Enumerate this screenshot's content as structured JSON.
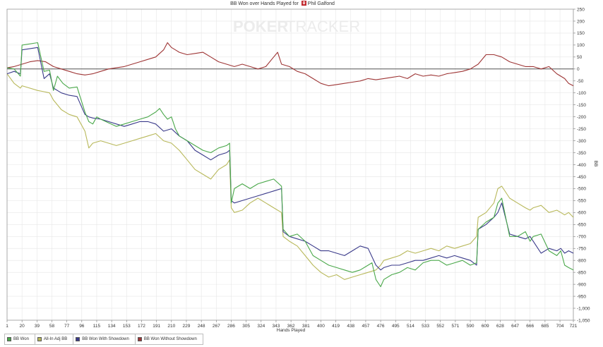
{
  "chart_data": {
    "type": "line",
    "title": "BB Won over Hands Played for",
    "player": "Phil Galfond",
    "watermark": {
      "part1": "POKER",
      "part2": "TRACKER"
    },
    "xlabel": "Hands Played",
    "ylabel": "BB",
    "xlim": [
      1,
      721
    ],
    "ylim": [
      -1050,
      250
    ],
    "x_ticks": [
      1,
      20,
      39,
      58,
      77,
      96,
      115,
      134,
      153,
      172,
      191,
      210,
      229,
      248,
      267,
      286,
      305,
      324,
      343,
      362,
      381,
      400,
      419,
      438,
      457,
      476,
      495,
      514,
      533,
      552,
      571,
      590,
      609,
      628,
      647,
      666,
      685,
      704,
      721
    ],
    "y_ticks": [
      {
        "value": 250,
        "label": "250"
      },
      {
        "value": 200,
        "label": "200"
      },
      {
        "value": 150,
        "label": "150"
      },
      {
        "value": 100,
        "label": "100"
      },
      {
        "value": 50,
        "label": "50"
      },
      {
        "value": 0,
        "label": "0"
      },
      {
        "value": -50,
        "label": "-50"
      },
      {
        "value": -100,
        "label": "-100"
      },
      {
        "value": -150,
        "label": "-150"
      },
      {
        "value": -200,
        "label": "-200"
      },
      {
        "value": -250,
        "label": "-250"
      },
      {
        "value": -300,
        "label": "-300"
      },
      {
        "value": -350,
        "label": "-350"
      },
      {
        "value": -400,
        "label": "-400"
      },
      {
        "value": -450,
        "label": "-450"
      },
      {
        "value": -500,
        "label": "-500"
      },
      {
        "value": -550,
        "label": "-550"
      },
      {
        "value": -600,
        "label": "-600"
      },
      {
        "value": -650,
        "label": "-650"
      },
      {
        "value": -700,
        "label": "-700"
      },
      {
        "value": -750,
        "label": "-750"
      },
      {
        "value": -800,
        "label": "-800"
      },
      {
        "value": -850,
        "label": "-850"
      },
      {
        "value": -900,
        "label": "-900"
      },
      {
        "value": -950,
        "label": "-950"
      },
      {
        "value": -1000,
        "label": "-1,000"
      },
      {
        "value": -1050,
        "label": "-1,050"
      }
    ],
    "grid": true,
    "legend_position": "bottom-left",
    "series": [
      {
        "name": "BB Won",
        "color": "#4aa84a",
        "x": [
          1,
          10,
          18,
          20,
          40,
          48,
          55,
          60,
          65,
          72,
          80,
          90,
          100,
          105,
          110,
          115,
          120,
          130,
          140,
          150,
          160,
          170,
          180,
          190,
          195,
          200,
          205,
          210,
          215,
          220,
          230,
          240,
          250,
          260,
          270,
          280,
          284,
          286,
          290,
          300,
          310,
          320,
          330,
          340,
          350,
          352,
          360,
          370,
          380,
          390,
          400,
          410,
          420,
          430,
          440,
          450,
          460,
          465,
          470,
          476,
          480,
          490,
          500,
          510,
          520,
          530,
          540,
          550,
          560,
          570,
          580,
          590,
          598,
          600,
          610,
          620,
          625,
          630,
          640,
          650,
          660,
          666,
          670,
          680,
          690,
          700,
          705,
          710,
          715,
          721
        ],
        "y": [
          5,
          0,
          -30,
          100,
          110,
          -10,
          -5,
          -90,
          -30,
          -60,
          -80,
          -75,
          -180,
          -220,
          -230,
          -200,
          -210,
          -225,
          -240,
          -230,
          -220,
          -210,
          -200,
          -180,
          -165,
          -190,
          -210,
          -200,
          -250,
          -280,
          -300,
          -320,
          -340,
          -350,
          -330,
          -320,
          -310,
          -560,
          -500,
          -480,
          -500,
          -480,
          -470,
          -460,
          -490,
          -670,
          -700,
          -690,
          -720,
          -780,
          -800,
          -820,
          -830,
          -840,
          -850,
          -840,
          -820,
          -810,
          -880,
          -910,
          -880,
          -860,
          -850,
          -830,
          -840,
          -810,
          -800,
          -800,
          -820,
          -810,
          -800,
          -820,
          -810,
          -670,
          -640,
          -620,
          -560,
          -540,
          -700,
          -700,
          -680,
          -720,
          -700,
          -690,
          -760,
          -780,
          -760,
          -820,
          -830,
          -840
        ]
      },
      {
        "name": "All-In Adj BB",
        "color": "#b8b85a",
        "x": [
          1,
          10,
          18,
          20,
          40,
          48,
          55,
          60,
          70,
          80,
          90,
          100,
          105,
          110,
          120,
          130,
          140,
          150,
          160,
          170,
          180,
          190,
          200,
          210,
          220,
          230,
          240,
          250,
          260,
          270,
          280,
          284,
          286,
          290,
          300,
          310,
          320,
          330,
          340,
          350,
          352,
          360,
          370,
          380,
          390,
          400,
          410,
          420,
          430,
          440,
          450,
          460,
          470,
          476,
          480,
          490,
          500,
          510,
          520,
          530,
          540,
          550,
          560,
          570,
          580,
          590,
          598,
          600,
          610,
          620,
          625,
          630,
          640,
          650,
          660,
          666,
          670,
          680,
          690,
          700,
          705,
          710,
          715,
          721
        ],
        "y": [
          -20,
          -60,
          -80,
          -70,
          -90,
          -95,
          -100,
          -130,
          -170,
          -190,
          -200,
          -260,
          -330,
          -310,
          -300,
          -310,
          -320,
          -310,
          -300,
          -290,
          -280,
          -270,
          -300,
          -310,
          -340,
          -380,
          -420,
          -440,
          -460,
          -420,
          -400,
          -380,
          -580,
          -600,
          -590,
          -560,
          -540,
          -560,
          -580,
          -600,
          -700,
          -720,
          -740,
          -780,
          -820,
          -850,
          -870,
          -860,
          -880,
          -870,
          -860,
          -850,
          -840,
          -820,
          -800,
          -790,
          -780,
          -760,
          -770,
          -760,
          -750,
          -760,
          -740,
          -750,
          -740,
          -730,
          -700,
          -620,
          -600,
          -560,
          -500,
          -490,
          -540,
          -560,
          -580,
          -590,
          -580,
          -570,
          -600,
          -590,
          -600,
          -610,
          -600,
          -620
        ]
      },
      {
        "name": "BB Won With Showdown",
        "color": "#3a3a8a",
        "x": [
          1,
          10,
          18,
          20,
          40,
          48,
          55,
          60,
          70,
          80,
          90,
          100,
          105,
          110,
          120,
          130,
          140,
          150,
          160,
          170,
          180,
          190,
          200,
          210,
          220,
          230,
          240,
          250,
          260,
          270,
          280,
          284,
          286,
          290,
          300,
          310,
          320,
          330,
          340,
          350,
          352,
          360,
          370,
          380,
          390,
          400,
          410,
          420,
          430,
          440,
          450,
          460,
          470,
          476,
          480,
          490,
          500,
          510,
          520,
          530,
          540,
          550,
          560,
          570,
          580,
          590,
          598,
          600,
          610,
          620,
          625,
          630,
          640,
          650,
          660,
          666,
          670,
          680,
          690,
          700,
          705,
          710,
          715,
          721
        ],
        "y": [
          -20,
          -10,
          -20,
          80,
          90,
          -40,
          -20,
          -80,
          -100,
          -110,
          -115,
          -190,
          -200,
          -205,
          -210,
          -220,
          -230,
          -240,
          -230,
          -220,
          -220,
          -230,
          -260,
          -250,
          -280,
          -300,
          -340,
          -360,
          -380,
          -360,
          -350,
          -340,
          -550,
          -560,
          -550,
          -540,
          -530,
          -520,
          -510,
          -500,
          -680,
          -700,
          -710,
          -720,
          -740,
          -760,
          -760,
          -770,
          -780,
          -760,
          -740,
          -750,
          -820,
          -840,
          -830,
          -820,
          -820,
          -810,
          -800,
          -800,
          -790,
          -780,
          -790,
          -780,
          -790,
          -800,
          -820,
          -670,
          -650,
          -620,
          -600,
          -560,
          -690,
          -700,
          -710,
          -700,
          -720,
          -770,
          -750,
          -760,
          -750,
          -770,
          -760,
          -770
        ]
      },
      {
        "name": "BB Won Without Showdown",
        "color": "#9e3535",
        "x": [
          1,
          10,
          20,
          30,
          40,
          50,
          60,
          70,
          80,
          90,
          100,
          110,
          120,
          130,
          140,
          150,
          160,
          170,
          180,
          190,
          200,
          205,
          210,
          215,
          220,
          230,
          240,
          250,
          260,
          270,
          280,
          290,
          300,
          310,
          320,
          330,
          340,
          345,
          350,
          360,
          370,
          380,
          390,
          400,
          410,
          420,
          430,
          440,
          450,
          460,
          470,
          480,
          490,
          500,
          510,
          520,
          530,
          540,
          550,
          560,
          570,
          580,
          590,
          600,
          610,
          620,
          630,
          640,
          650,
          660,
          670,
          680,
          690,
          700,
          710,
          715,
          721
        ],
        "y": [
          5,
          10,
          20,
          30,
          35,
          30,
          10,
          0,
          -10,
          -20,
          -25,
          -20,
          -10,
          0,
          5,
          10,
          20,
          30,
          40,
          50,
          80,
          110,
          90,
          80,
          70,
          60,
          65,
          70,
          50,
          30,
          20,
          10,
          20,
          10,
          0,
          10,
          50,
          70,
          20,
          10,
          -10,
          -20,
          -40,
          -60,
          -70,
          -65,
          -60,
          -55,
          -50,
          -40,
          -45,
          -40,
          -35,
          -30,
          -40,
          -20,
          -30,
          -25,
          -30,
          -20,
          -15,
          -10,
          0,
          20,
          60,
          60,
          50,
          30,
          20,
          10,
          10,
          0,
          10,
          -20,
          -40,
          -60,
          -70
        ]
      }
    ]
  }
}
